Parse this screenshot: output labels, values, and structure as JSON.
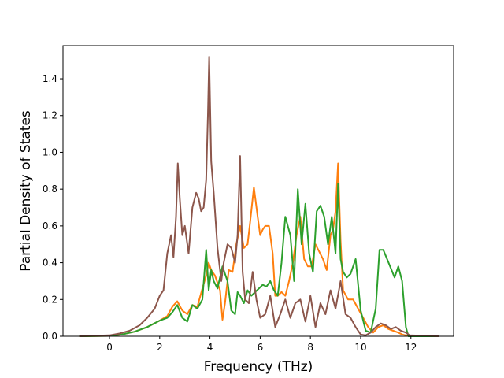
{
  "chart_data": {
    "type": "line",
    "title": "",
    "xlabel": "Frequency (THz)",
    "ylabel": "Partial Density of States",
    "xlim": [
      -1.85,
      13.7
    ],
    "ylim": [
      0.0,
      1.58
    ],
    "xticks": [
      0,
      2,
      4,
      6,
      8,
      10,
      12
    ],
    "yticks": [
      0.0,
      0.2,
      0.4,
      0.6,
      0.8,
      1.0,
      1.2,
      1.4
    ],
    "xtick_labels": [
      "0",
      "2",
      "4",
      "6",
      "8",
      "10",
      "12"
    ],
    "ytick_labels": [
      "0.0",
      "0.2",
      "0.4",
      "0.6",
      "0.8",
      "1.0",
      "1.2",
      "1.4"
    ],
    "grid": false,
    "legend": "none",
    "series": [
      {
        "color": "#ff7f0e",
        "x": [
          -1.2,
          0.0,
          0.5,
          1.0,
          1.5,
          2.0,
          2.3,
          2.5,
          2.7,
          2.9,
          3.1,
          3.3,
          3.5,
          3.7,
          3.85,
          3.95,
          4.05,
          4.2,
          4.4,
          4.5,
          4.6,
          4.75,
          4.9,
          5.05,
          5.2,
          5.35,
          5.5,
          5.6,
          5.75,
          5.9,
          6.0,
          6.1,
          6.2,
          6.35,
          6.5,
          6.6,
          6.7,
          6.85,
          7.0,
          7.15,
          7.3,
          7.45,
          7.6,
          7.75,
          7.9,
          8.05,
          8.2,
          8.35,
          8.5,
          8.65,
          8.8,
          8.9,
          9.0,
          9.1,
          9.2,
          9.3,
          9.5,
          9.7,
          9.9,
          10.1,
          10.3,
          10.5,
          10.7,
          10.9,
          11.1,
          11.3,
          11.5,
          11.65,
          11.8,
          12.0,
          13.1
        ],
        "y": [
          0.0,
          0.002,
          0.01,
          0.025,
          0.05,
          0.085,
          0.11,
          0.16,
          0.19,
          0.14,
          0.12,
          0.17,
          0.16,
          0.26,
          0.33,
          0.4,
          0.36,
          0.33,
          0.25,
          0.09,
          0.18,
          0.36,
          0.35,
          0.5,
          0.6,
          0.48,
          0.5,
          0.62,
          0.81,
          0.65,
          0.55,
          0.58,
          0.6,
          0.6,
          0.45,
          0.22,
          0.22,
          0.24,
          0.22,
          0.3,
          0.4,
          0.55,
          0.65,
          0.42,
          0.38,
          0.38,
          0.5,
          0.46,
          0.42,
          0.36,
          0.55,
          0.58,
          0.68,
          0.94,
          0.52,
          0.25,
          0.2,
          0.2,
          0.15,
          0.1,
          0.05,
          0.02,
          0.05,
          0.06,
          0.04,
          0.03,
          0.02,
          0.01,
          0.005,
          0.0,
          0.0
        ]
      },
      {
        "color": "#2ca02c",
        "x": [
          -1.2,
          0.0,
          0.5,
          1.0,
          1.5,
          2.0,
          2.3,
          2.5,
          2.7,
          2.9,
          3.1,
          3.3,
          3.5,
          3.7,
          3.85,
          3.95,
          4.05,
          4.15,
          4.3,
          4.5,
          4.7,
          4.85,
          5.0,
          5.1,
          5.2,
          5.35,
          5.5,
          5.65,
          5.8,
          5.95,
          6.1,
          6.25,
          6.4,
          6.55,
          6.7,
          6.85,
          7.0,
          7.2,
          7.35,
          7.5,
          7.65,
          7.8,
          7.95,
          8.1,
          8.25,
          8.4,
          8.55,
          8.7,
          8.85,
          9.0,
          9.1,
          9.2,
          9.3,
          9.45,
          9.6,
          9.8,
          10.0,
          10.2,
          10.4,
          10.6,
          10.75,
          10.9,
          11.05,
          11.2,
          11.35,
          11.5,
          11.65,
          11.8,
          11.9,
          12.0,
          13.1
        ],
        "y": [
          0.0,
          0.002,
          0.01,
          0.025,
          0.05,
          0.085,
          0.1,
          0.13,
          0.17,
          0.1,
          0.08,
          0.17,
          0.15,
          0.2,
          0.47,
          0.25,
          0.36,
          0.3,
          0.26,
          0.38,
          0.3,
          0.14,
          0.12,
          0.24,
          0.22,
          0.18,
          0.25,
          0.22,
          0.24,
          0.26,
          0.28,
          0.27,
          0.3,
          0.25,
          0.22,
          0.4,
          0.65,
          0.55,
          0.3,
          0.8,
          0.5,
          0.72,
          0.45,
          0.35,
          0.68,
          0.71,
          0.65,
          0.5,
          0.65,
          0.45,
          0.83,
          0.42,
          0.35,
          0.32,
          0.34,
          0.42,
          0.14,
          0.03,
          0.02,
          0.15,
          0.47,
          0.47,
          0.42,
          0.37,
          0.32,
          0.38,
          0.3,
          0.05,
          0.0,
          0.0,
          0.0
        ]
      },
      {
        "color": "#8c564b",
        "x": [
          -1.2,
          0.0,
          0.4,
          0.8,
          1.2,
          1.5,
          1.8,
          2.0,
          2.15,
          2.3,
          2.45,
          2.55,
          2.65,
          2.72,
          2.8,
          2.9,
          3.0,
          3.15,
          3.3,
          3.45,
          3.55,
          3.65,
          3.75,
          3.85,
          3.92,
          3.97,
          4.05,
          4.15,
          4.3,
          4.45,
          4.55,
          4.7,
          4.85,
          5.0,
          5.1,
          5.2,
          5.3,
          5.4,
          5.55,
          5.7,
          5.85,
          6.0,
          6.2,
          6.4,
          6.6,
          6.8,
          7.0,
          7.2,
          7.4,
          7.6,
          7.8,
          8.0,
          8.2,
          8.4,
          8.6,
          8.8,
          9.0,
          9.2,
          9.4,
          9.6,
          9.8,
          10.0,
          10.2,
          10.4,
          10.6,
          10.8,
          11.0,
          11.2,
          11.4,
          11.6,
          11.8,
          11.95,
          13.1
        ],
        "y": [
          0.0,
          0.005,
          0.015,
          0.03,
          0.06,
          0.1,
          0.15,
          0.22,
          0.25,
          0.45,
          0.55,
          0.43,
          0.65,
          0.94,
          0.75,
          0.55,
          0.6,
          0.45,
          0.7,
          0.78,
          0.75,
          0.68,
          0.7,
          0.85,
          1.2,
          1.52,
          0.95,
          0.78,
          0.48,
          0.3,
          0.4,
          0.5,
          0.48,
          0.4,
          0.55,
          0.98,
          0.35,
          0.2,
          0.18,
          0.35,
          0.2,
          0.1,
          0.12,
          0.22,
          0.05,
          0.12,
          0.2,
          0.1,
          0.18,
          0.2,
          0.08,
          0.22,
          0.05,
          0.18,
          0.12,
          0.25,
          0.15,
          0.3,
          0.12,
          0.1,
          0.05,
          0.01,
          0.005,
          0.02,
          0.05,
          0.07,
          0.06,
          0.04,
          0.05,
          0.03,
          0.02,
          0.005,
          0.0
        ]
      }
    ]
  }
}
